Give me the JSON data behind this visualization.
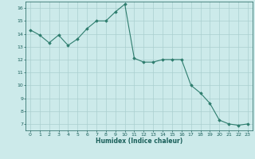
{
  "x": [
    0,
    1,
    2,
    3,
    4,
    5,
    6,
    7,
    8,
    9,
    10,
    11,
    12,
    13,
    14,
    15,
    16,
    17,
    18,
    19,
    20,
    21,
    22,
    23
  ],
  "y": [
    14.3,
    13.9,
    13.3,
    13.9,
    13.1,
    13.6,
    14.4,
    15.0,
    15.0,
    15.7,
    16.3,
    12.1,
    11.8,
    11.8,
    12.0,
    12.0,
    12.0,
    10.0,
    9.4,
    8.6,
    7.3,
    7.0,
    6.9,
    7.0
  ],
  "xlim": [
    -0.5,
    23.5
  ],
  "ylim": [
    6.5,
    16.5
  ],
  "yticks": [
    7,
    8,
    9,
    10,
    11,
    12,
    13,
    14,
    15,
    16
  ],
  "xticks": [
    0,
    1,
    2,
    3,
    4,
    5,
    6,
    7,
    8,
    9,
    10,
    11,
    12,
    13,
    14,
    15,
    16,
    17,
    18,
    19,
    20,
    21,
    22,
    23
  ],
  "xlabel": "Humidex (Indice chaleur)",
  "line_color": "#2e7d6e",
  "marker": "D",
  "marker_size": 1.8,
  "bg_color": "#cceaea",
  "grid_color": "#aacfcf",
  "tick_label_color": "#1a5f5a",
  "xlabel_color": "#1a5f5a"
}
